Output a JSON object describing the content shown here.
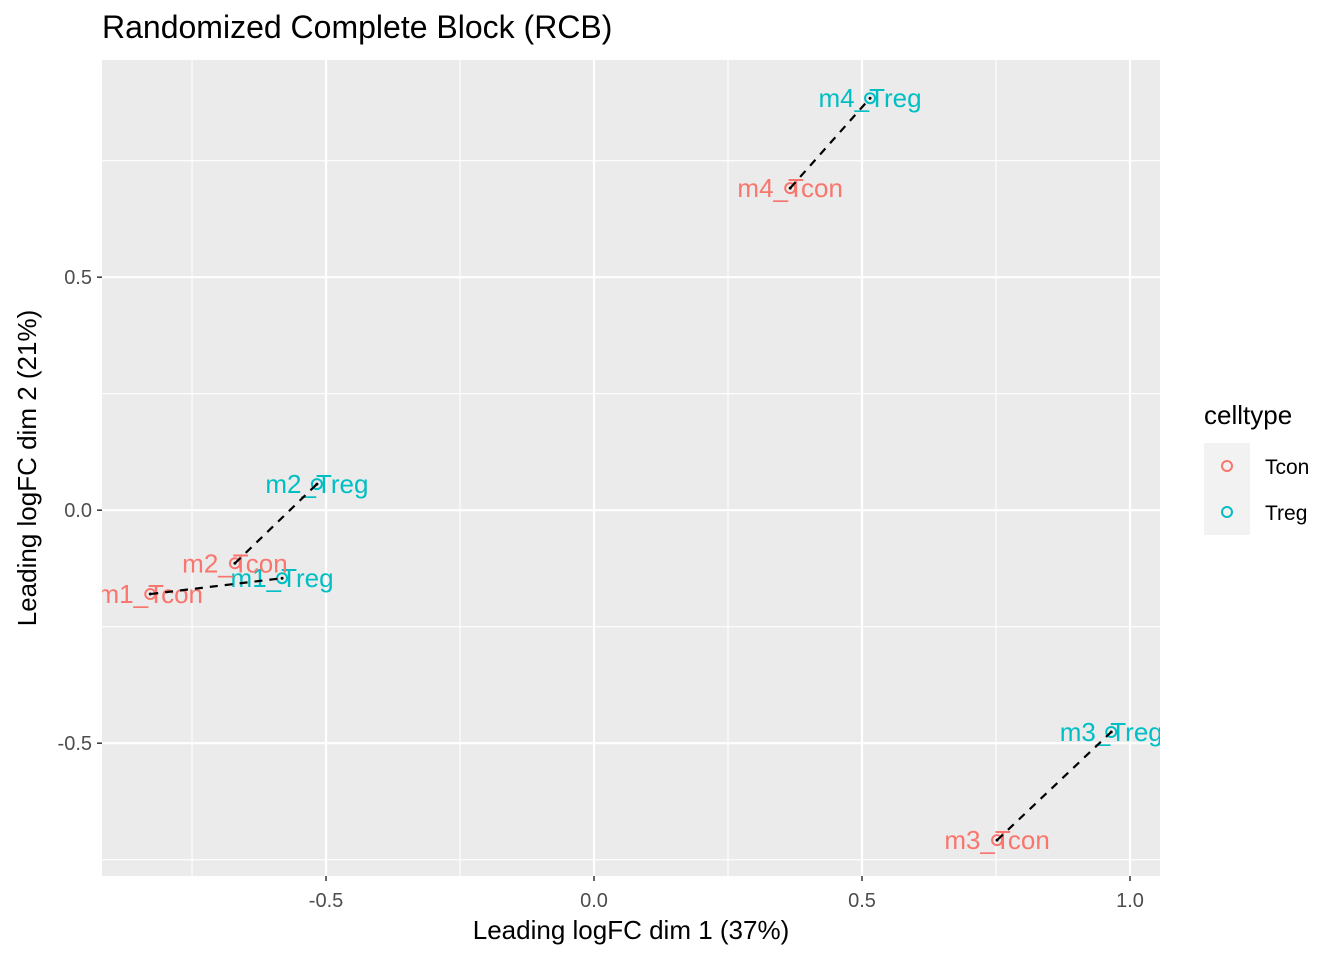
{
  "chart_data": {
    "type": "scatter",
    "title": "Randomized Complete Block (RCB)",
    "xlabel": "Leading logFC dim 1 (37%)",
    "ylabel": "Leading logFC dim 2 (21%)",
    "xlim": [
      -0.918,
      1.056
    ],
    "ylim": [
      -0.785,
      0.966
    ],
    "xticks": [
      -0.5,
      0.0,
      0.5,
      1.0
    ],
    "xtick_labels": [
      "-0.5",
      "0.0",
      "0.5",
      "1.0"
    ],
    "yticks": [
      -0.5,
      0.0,
      0.5
    ],
    "ytick_labels": [
      "-0.5",
      "0.0",
      "0.5"
    ],
    "grid": true,
    "legend": {
      "title": "celltype",
      "placement": "right",
      "entries": [
        {
          "label": "Tcon",
          "color": "#F8766D"
        },
        {
          "label": "Treg",
          "color": "#00BFC4"
        }
      ]
    },
    "points": [
      {
        "label": "m1_Tcon",
        "celltype": "Tcon",
        "x": -0.828,
        "y": -0.18
      },
      {
        "label": "m1_Treg",
        "celltype": "Treg",
        "x": -0.582,
        "y": -0.146
      },
      {
        "label": "m2_Tcon",
        "celltype": "Tcon",
        "x": -0.67,
        "y": -0.114
      },
      {
        "label": "m2_Treg",
        "celltype": "Treg",
        "x": -0.517,
        "y": 0.056
      },
      {
        "label": "m3_Tcon",
        "celltype": "Tcon",
        "x": 0.752,
        "y": -0.708
      },
      {
        "label": "m3_Treg",
        "celltype": "Treg",
        "x": 0.965,
        "y": -0.476
      },
      {
        "label": "m4_Tcon",
        "celltype": "Tcon",
        "x": 0.366,
        "y": 0.691
      },
      {
        "label": "m4_Treg",
        "celltype": "Treg",
        "x": 0.515,
        "y": 0.884
      }
    ],
    "pairs": [
      [
        "m1_Tcon",
        "m1_Treg"
      ],
      [
        "m2_Tcon",
        "m2_Treg"
      ],
      [
        "m3_Tcon",
        "m3_Treg"
      ],
      [
        "m4_Tcon",
        "m4_Treg"
      ]
    ],
    "pair_line_style": "dashed black"
  }
}
